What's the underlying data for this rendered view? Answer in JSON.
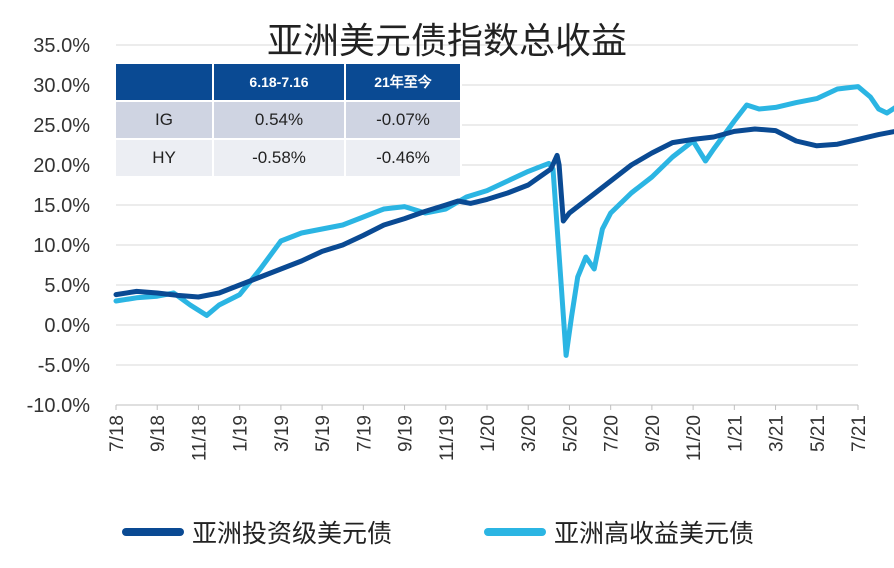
{
  "chart_data": {
    "type": "line",
    "title": "亚洲美元债指数总收益",
    "y_ticks": [
      "35.0%",
      "30.0%",
      "25.0%",
      "20.0%",
      "15.0%",
      "10.0%",
      "5.0%",
      "0.0%",
      "-5.0%",
      "-10.0%"
    ],
    "ylim": [
      -10,
      35
    ],
    "x_ticks": [
      "7/18",
      "9/18",
      "11/18",
      "1/19",
      "3/19",
      "5/19",
      "7/19",
      "9/19",
      "11/19",
      "1/20",
      "3/20",
      "5/20",
      "7/20",
      "9/20",
      "11/20",
      "1/21",
      "3/21",
      "5/21",
      "7/21"
    ],
    "grid": "horizontal",
    "legend_position": "bottom",
    "series": [
      {
        "name": "亚洲投资级美元债",
        "color": "#0a4a93",
        "points": [
          [
            0,
            3.8
          ],
          [
            0.5,
            4.2
          ],
          [
            1,
            4.0
          ],
          [
            1.5,
            3.7
          ],
          [
            2,
            3.5
          ],
          [
            2.5,
            4.0
          ],
          [
            3,
            5.0
          ],
          [
            3.5,
            6.0
          ],
          [
            4,
            7.0
          ],
          [
            4.5,
            8.0
          ],
          [
            5,
            9.2
          ],
          [
            5.5,
            10.0
          ],
          [
            6,
            11.2
          ],
          [
            6.5,
            12.5
          ],
          [
            7,
            13.3
          ],
          [
            7.5,
            14.2
          ],
          [
            8,
            15.0
          ],
          [
            8.3,
            15.5
          ],
          [
            8.6,
            15.2
          ],
          [
            9,
            15.7
          ],
          [
            9.5,
            16.5
          ],
          [
            10,
            17.5
          ],
          [
            10.3,
            18.6
          ],
          [
            10.55,
            19.5
          ],
          [
            10.7,
            21.2
          ],
          [
            10.75,
            20.0
          ],
          [
            10.85,
            13.0
          ],
          [
            11,
            14.0
          ],
          [
            11.5,
            16.0
          ],
          [
            12,
            18.0
          ],
          [
            12.5,
            20.0
          ],
          [
            13,
            21.5
          ],
          [
            13.5,
            22.8
          ],
          [
            14,
            23.2
          ],
          [
            14.5,
            23.5
          ],
          [
            15,
            24.2
          ],
          [
            15.5,
            24.5
          ],
          [
            16,
            24.3
          ],
          [
            16.5,
            23.0
          ],
          [
            17,
            22.4
          ],
          [
            17.5,
            22.6
          ],
          [
            18,
            23.2
          ],
          [
            18.5,
            23.8
          ],
          [
            19,
            24.3
          ]
        ]
      },
      {
        "name": "亚洲高收益美元债",
        "color": "#2bb5e3",
        "points": [
          [
            0,
            3.0
          ],
          [
            0.5,
            3.4
          ],
          [
            1,
            3.6
          ],
          [
            1.4,
            4.0
          ],
          [
            1.8,
            2.5
          ],
          [
            2.2,
            1.2
          ],
          [
            2.5,
            2.5
          ],
          [
            3,
            3.8
          ],
          [
            3.5,
            7.0
          ],
          [
            4,
            10.5
          ],
          [
            4.5,
            11.5
          ],
          [
            5,
            12.0
          ],
          [
            5.5,
            12.5
          ],
          [
            6,
            13.5
          ],
          [
            6.5,
            14.5
          ],
          [
            7,
            14.8
          ],
          [
            7.5,
            14.0
          ],
          [
            8,
            14.5
          ],
          [
            8.5,
            16.0
          ],
          [
            9,
            16.8
          ],
          [
            9.5,
            18.0
          ],
          [
            10,
            19.2
          ],
          [
            10.3,
            19.8
          ],
          [
            10.5,
            20.2
          ],
          [
            10.6,
            19.5
          ],
          [
            10.8,
            5.0
          ],
          [
            10.92,
            -3.8
          ],
          [
            11.05,
            1.0
          ],
          [
            11.2,
            6.0
          ],
          [
            11.4,
            8.5
          ],
          [
            11.6,
            7.0
          ],
          [
            11.8,
            12.0
          ],
          [
            12,
            14.0
          ],
          [
            12.5,
            16.5
          ],
          [
            13,
            18.5
          ],
          [
            13.5,
            21.0
          ],
          [
            14,
            23.0
          ],
          [
            14.3,
            20.5
          ],
          [
            14.5,
            22.0
          ],
          [
            15,
            25.5
          ],
          [
            15.3,
            27.5
          ],
          [
            15.6,
            27.0
          ],
          [
            16,
            27.2
          ],
          [
            16.5,
            27.8
          ],
          [
            17,
            28.3
          ],
          [
            17.5,
            29.5
          ],
          [
            18,
            29.8
          ],
          [
            18.3,
            28.5
          ],
          [
            18.5,
            27.0
          ],
          [
            18.7,
            26.5
          ],
          [
            19,
            27.5
          ]
        ]
      }
    ]
  },
  "table": {
    "headers": [
      "",
      "6.18-7.16",
      "21年至今"
    ],
    "rows": [
      [
        "IG",
        "0.54%",
        "-0.07%"
      ],
      [
        "HY",
        "-0.58%",
        "-0.46%"
      ]
    ]
  }
}
